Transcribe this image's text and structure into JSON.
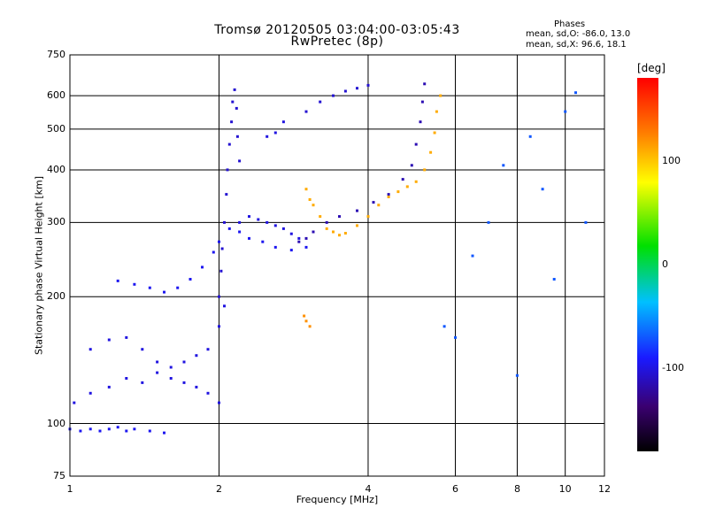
{
  "header": {
    "title": "Tromsø 20120505 03:04:00-03:05:43",
    "subtitle": "RwPretec (8p)"
  },
  "stats": {
    "heading": "Phases",
    "o_line": "mean, sd,O: -86.0, 13.0",
    "x_line": "mean, sd,X:  96.6, 18.1"
  },
  "colorbar": {
    "unit": "[deg]",
    "range": [
      -180,
      180
    ],
    "ticks": [
      {
        "value": 100,
        "label": "100"
      },
      {
        "value": 0,
        "label": "0"
      },
      {
        "value": -100,
        "label": "-100"
      }
    ]
  },
  "chart_data": {
    "type": "scatter",
    "xlabel": "Frequency [MHz]",
    "ylabel": "Stationary phase Virtual Height [km]",
    "x_scale": "log",
    "y_scale": "log",
    "xlim": [
      1,
      12
    ],
    "ylim": [
      75,
      750
    ],
    "x_ticks": [
      1,
      2,
      4,
      6,
      8,
      10,
      12
    ],
    "x_tick_labels": [
      "1",
      "2",
      "4",
      "6",
      "8",
      "10",
      "12"
    ],
    "y_ticks": [
      75,
      100,
      200,
      300,
      400,
      500,
      600,
      750
    ],
    "y_tick_labels": [
      "75",
      "100",
      "200",
      "300",
      "400",
      "500",
      "600",
      "750"
    ],
    "grid_x": [
      2,
      4,
      6,
      8,
      10
    ],
    "grid_y": [
      100,
      200,
      300,
      400,
      500,
      600
    ],
    "point_color_value": "phase [deg]",
    "traces": [
      {
        "phase": -95,
        "points": [
          [
            1.0,
            97
          ],
          [
            1.05,
            96
          ],
          [
            1.1,
            97
          ],
          [
            1.15,
            96
          ],
          [
            1.2,
            97
          ],
          [
            1.25,
            98
          ],
          [
            1.3,
            96
          ],
          [
            1.35,
            97
          ],
          [
            1.45,
            96
          ],
          [
            1.55,
            95
          ]
        ]
      },
      {
        "phase": -100,
        "points": [
          [
            1.02,
            112
          ],
          [
            1.1,
            118
          ],
          [
            1.2,
            122
          ],
          [
            1.3,
            128
          ],
          [
            1.4,
            125
          ],
          [
            1.5,
            132
          ],
          [
            1.6,
            136
          ],
          [
            1.7,
            140
          ],
          [
            1.8,
            145
          ],
          [
            1.9,
            150
          ],
          [
            2.0,
            170
          ],
          [
            2.05,
            190
          ]
        ]
      },
      {
        "phase": -100,
        "points": [
          [
            1.1,
            150
          ],
          [
            1.2,
            158
          ],
          [
            1.3,
            160
          ],
          [
            1.4,
            150
          ],
          [
            1.5,
            140
          ],
          [
            1.6,
            128
          ],
          [
            1.7,
            125
          ],
          [
            1.8,
            122
          ],
          [
            1.9,
            118
          ],
          [
            2.0,
            112
          ]
        ]
      },
      {
        "phase": -95,
        "points": [
          [
            1.25,
            218
          ],
          [
            1.35,
            214
          ],
          [
            1.45,
            210
          ],
          [
            1.55,
            205
          ],
          [
            1.65,
            210
          ],
          [
            1.75,
            220
          ],
          [
            1.85,
            235
          ],
          [
            1.95,
            255
          ],
          [
            2.0,
            270
          ],
          [
            2.1,
            290
          ],
          [
            2.2,
            285
          ],
          [
            2.3,
            275
          ],
          [
            2.45,
            270
          ],
          [
            2.6,
            262
          ],
          [
            2.8,
            258
          ],
          [
            3.0,
            262
          ]
        ]
      },
      {
        "phase": -105,
        "points": [
          [
            2.0,
            200
          ],
          [
            2.02,
            230
          ],
          [
            2.03,
            260
          ],
          [
            2.05,
            300
          ],
          [
            2.07,
            350
          ],
          [
            2.08,
            400
          ],
          [
            2.1,
            460
          ],
          [
            2.12,
            520
          ],
          [
            2.13,
            580
          ],
          [
            2.15,
            620
          ],
          [
            2.17,
            560
          ],
          [
            2.18,
            480
          ],
          [
            2.2,
            420
          ]
        ]
      },
      {
        "phase": -100,
        "points": [
          [
            2.2,
            300
          ],
          [
            2.3,
            310
          ],
          [
            2.4,
            305
          ],
          [
            2.5,
            300
          ],
          [
            2.6,
            295
          ],
          [
            2.7,
            290
          ],
          [
            2.8,
            282
          ],
          [
            2.9,
            275
          ]
        ]
      },
      {
        "phase": -100,
        "points": [
          [
            2.5,
            480
          ],
          [
            2.6,
            490
          ],
          [
            2.7,
            520
          ]
        ]
      },
      {
        "phase": -115,
        "points": [
          [
            2.9,
            270
          ],
          [
            3.0,
            275
          ],
          [
            3.1,
            285
          ],
          [
            3.3,
            300
          ],
          [
            3.5,
            310
          ],
          [
            3.8,
            320
          ],
          [
            4.1,
            335
          ],
          [
            4.4,
            350
          ],
          [
            4.7,
            380
          ],
          [
            4.9,
            410
          ],
          [
            5.0,
            460
          ],
          [
            5.1,
            520
          ],
          [
            5.15,
            580
          ],
          [
            5.2,
            640
          ]
        ]
      },
      {
        "phase": 110,
        "points": [
          [
            3.0,
            360
          ],
          [
            3.05,
            340
          ],
          [
            3.1,
            330
          ],
          [
            3.2,
            310
          ],
          [
            3.3,
            290
          ],
          [
            3.4,
            285
          ],
          [
            3.5,
            280
          ],
          [
            3.6,
            283
          ],
          [
            3.8,
            295
          ],
          [
            4.0,
            310
          ],
          [
            4.2,
            330
          ],
          [
            4.4,
            345
          ],
          [
            4.6,
            355
          ],
          [
            4.8,
            365
          ],
          [
            5.0,
            375
          ],
          [
            5.2,
            400
          ],
          [
            5.35,
            440
          ],
          [
            5.45,
            490
          ],
          [
            5.5,
            550
          ],
          [
            5.6,
            600
          ]
        ]
      },
      {
        "phase": -105,
        "points": [
          [
            3.0,
            550
          ],
          [
            3.2,
            580
          ],
          [
            3.4,
            600
          ],
          [
            3.6,
            615
          ],
          [
            3.8,
            625
          ],
          [
            4.0,
            635
          ]
        ]
      },
      {
        "phase": 120,
        "points": [
          [
            2.97,
            180
          ],
          [
            3.0,
            175
          ],
          [
            3.05,
            170
          ]
        ]
      },
      {
        "phase": -70,
        "points": [
          [
            5.7,
            170
          ],
          [
            6.0,
            160
          ],
          [
            6.5,
            250
          ],
          [
            7.0,
            300
          ],
          [
            7.5,
            410
          ],
          [
            8.0,
            130
          ],
          [
            8.5,
            480
          ],
          [
            9.0,
            360
          ],
          [
            9.5,
            220
          ],
          [
            10.0,
            550
          ],
          [
            10.5,
            610
          ],
          [
            11.0,
            300
          ]
        ]
      }
    ]
  }
}
